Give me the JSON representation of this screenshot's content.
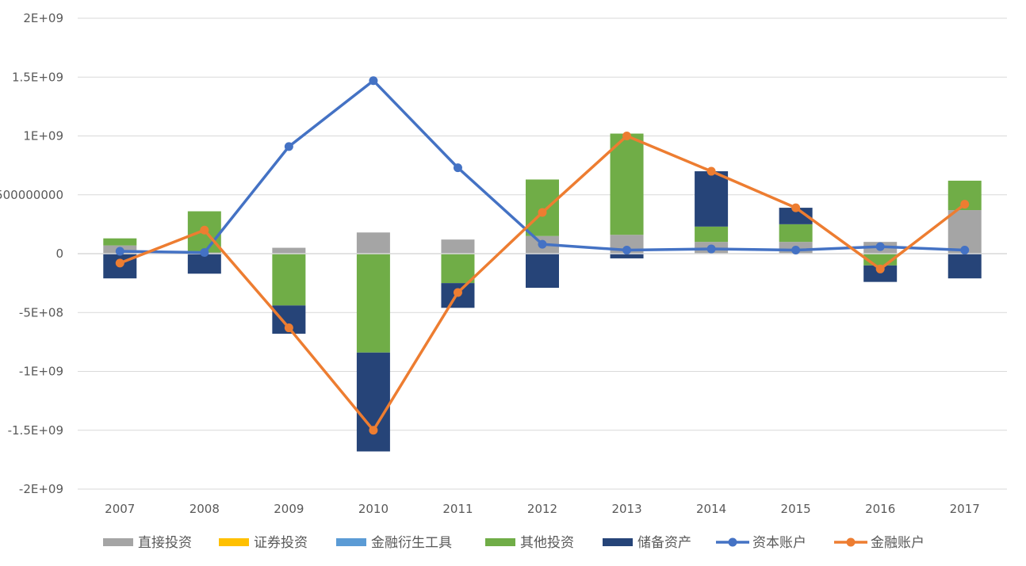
{
  "chart_data": {
    "type": "bar",
    "categories": [
      "2007",
      "2008",
      "2009",
      "2010",
      "2011",
      "2012",
      "2013",
      "2014",
      "2015",
      "2016",
      "2017"
    ],
    "ylim": [
      -2000000000,
      2000000000
    ],
    "yticks": [
      2000000000,
      1500000000,
      1000000000,
      500000000,
      0,
      -500000000,
      -1000000000,
      -1500000000,
      -2000000000
    ],
    "ytick_labels": [
      "2E+09",
      "1.5E+09",
      "1E+09",
      "500000000",
      "0",
      "-5E+08",
      "-1E+09",
      "-1.5E+09",
      "-2E+09"
    ],
    "grid": true,
    "legend_position": "bottom",
    "bar_series": [
      {
        "name": "直接投资",
        "color": "#a5a5a5",
        "values": [
          70000000,
          10000000,
          50000000,
          180000000,
          120000000,
          150000000,
          160000000,
          100000000,
          100000000,
          100000000,
          370000000
        ]
      },
      {
        "name": "证券投资",
        "color": "#ffc000",
        "values": [
          0,
          0,
          0,
          0,
          0,
          0,
          0,
          0,
          0,
          0,
          0
        ]
      },
      {
        "name": "金融衍生工具",
        "color": "#5b9bd5",
        "values": [
          0,
          0,
          0,
          0,
          0,
          0,
          0,
          0,
          0,
          0,
          0
        ]
      },
      {
        "name": "其他投资",
        "color": "#70ad47",
        "values": [
          60000000,
          350000000,
          -440000000,
          -840000000,
          -250000000,
          480000000,
          860000000,
          130000000,
          150000000,
          -100000000,
          250000000
        ]
      },
      {
        "name": "储备资产",
        "color": "#264478",
        "values": [
          -210000000,
          -170000000,
          -240000000,
          -840000000,
          -210000000,
          -290000000,
          -40000000,
          470000000,
          140000000,
          -140000000,
          -210000000
        ]
      }
    ],
    "line_series": [
      {
        "name": "资本账户",
        "color": "#4472c4",
        "values": [
          20000000,
          10000000,
          910000000,
          1470000000,
          730000000,
          80000000,
          30000000,
          40000000,
          30000000,
          60000000,
          30000000
        ]
      },
      {
        "name": "金融账户",
        "color": "#ed7d31",
        "values": [
          -80000000,
          200000000,
          -630000000,
          -1500000000,
          -330000000,
          350000000,
          1000000000,
          700000000,
          390000000,
          -130000000,
          420000000
        ]
      }
    ]
  }
}
